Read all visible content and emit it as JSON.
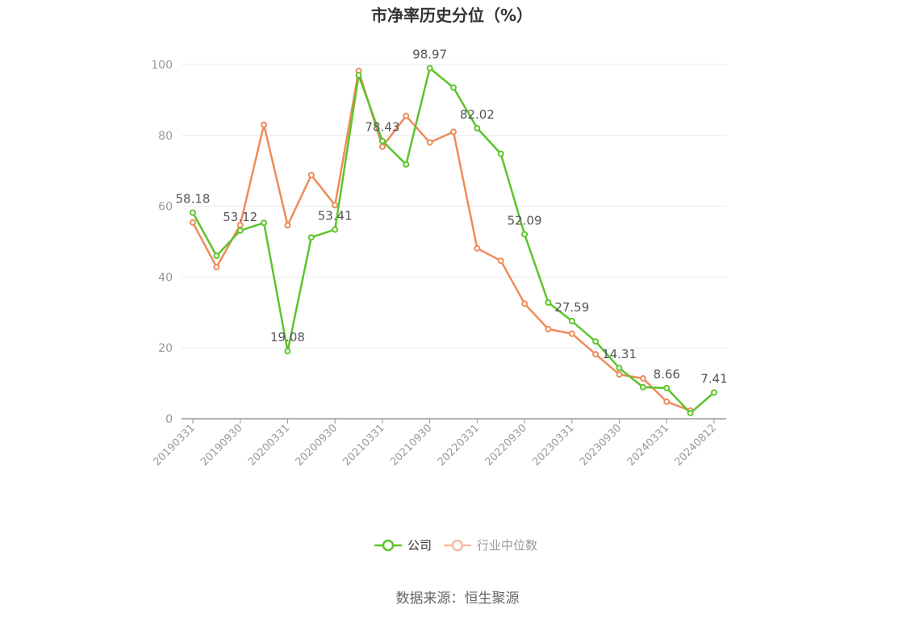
{
  "chart_data": {
    "type": "line",
    "title": "市净率历史分位（%）",
    "source": "数据来源：恒生聚源",
    "x": [
      "20190331",
      "20190630",
      "20190930",
      "20191231",
      "20200331",
      "20200630",
      "20200930",
      "20201231",
      "20210331",
      "20210630",
      "20210930",
      "20211231",
      "20220331",
      "20220630",
      "20220930",
      "20221231",
      "20230331",
      "20230630",
      "20230930",
      "20231231",
      "20240331",
      "20240630",
      "20240812"
    ],
    "x_tick_labels": [
      "20190331",
      "20190930",
      "20200331",
      "20200930",
      "20210331",
      "20210930",
      "20220331",
      "20220930",
      "20230331",
      "20230930",
      "20240331",
      "20240812"
    ],
    "ylim": [
      0,
      100
    ],
    "y_ticks": [
      0,
      20,
      40,
      60,
      80,
      100
    ],
    "grid": true,
    "legend_position": "bottom-center",
    "series": [
      {
        "name": "公司",
        "color": "#5cc42c",
        "values": [
          58.18,
          46.0,
          53.12,
          55.3,
          19.08,
          51.2,
          53.41,
          97.0,
          78.43,
          71.8,
          98.97,
          93.5,
          82.02,
          74.8,
          52.09,
          32.8,
          27.59,
          21.8,
          14.31,
          8.9,
          8.66,
          1.6,
          7.41
        ]
      },
      {
        "name": "行业中位数",
        "color": "#f08a5a",
        "legend_color": "#f7b9a0",
        "values": [
          55.4,
          42.8,
          54.7,
          83.0,
          54.6,
          68.8,
          60.3,
          98.2,
          76.8,
          85.5,
          78.0,
          81.0,
          48.1,
          44.6,
          32.5,
          25.3,
          24.0,
          18.2,
          12.5,
          11.4,
          4.8,
          2.3,
          null
        ]
      }
    ],
    "data_labels": [
      {
        "index": 0,
        "text": "58.18"
      },
      {
        "index": 2,
        "text": "53.12"
      },
      {
        "index": 4,
        "text": "19.08"
      },
      {
        "index": 6,
        "text": "53.41"
      },
      {
        "index": 8,
        "text": "78.43"
      },
      {
        "index": 10,
        "text": "98.97"
      },
      {
        "index": 12,
        "text": "82.02"
      },
      {
        "index": 14,
        "text": "52.09"
      },
      {
        "index": 16,
        "text": "27.59"
      },
      {
        "index": 18,
        "text": "14.31"
      },
      {
        "index": 20,
        "text": "8.66"
      },
      {
        "index": 22,
        "text": "7.41"
      }
    ]
  }
}
